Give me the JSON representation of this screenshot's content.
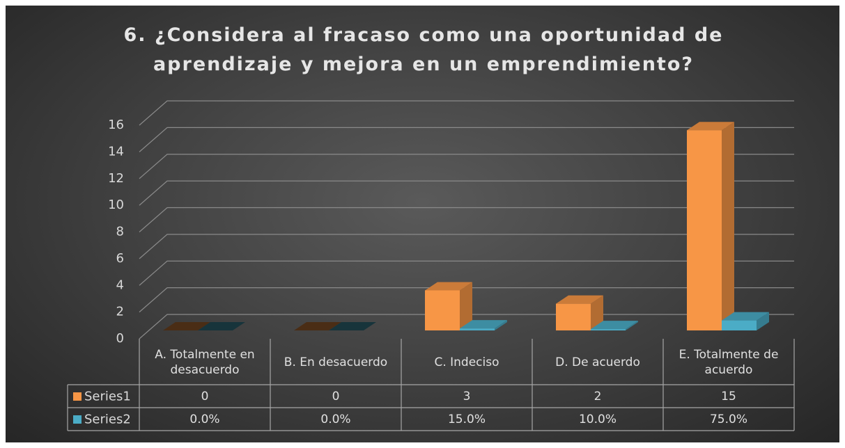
{
  "chart_data": {
    "type": "bar3d",
    "title": "6. ¿Considera al fracaso como una oportunidad de aprendizaje y mejora en un emprendimiento?",
    "categories": [
      "A. Totalmente en desacuerdo",
      "B. En desacuerdo",
      "C. Indeciso",
      "D. De acuerdo",
      "E. Totalmente de acuerdo"
    ],
    "series": [
      {
        "name": "Series1",
        "color": "#f79646",
        "values": [
          0,
          0,
          3,
          2,
          15
        ]
      },
      {
        "name": "Series2",
        "color": "#4bacc6",
        "values": [
          0,
          0,
          0.15,
          0.1,
          0.75
        ],
        "value_labels": [
          "0.0%",
          "0.0%",
          "15.0%",
          "10.0%",
          "75.0%"
        ]
      }
    ],
    "ylim": [
      0,
      16
    ],
    "yticks": [
      0,
      2,
      4,
      6,
      8,
      10,
      12,
      14,
      16
    ],
    "grid": true,
    "data_table": true
  }
}
